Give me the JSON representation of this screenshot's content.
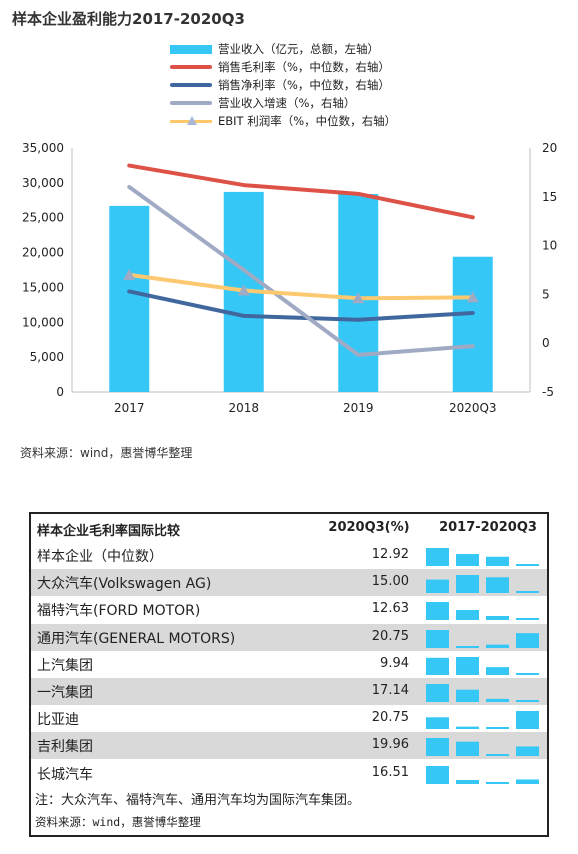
{
  "title": "样本企业盈利能力2017-2020Q3",
  "source1": "资料来源：wind，惠誉博华整理",
  "colors": {
    "revenue": "#35c8f6",
    "gross": "#dd5146",
    "net": "#41689e",
    "growth": "#a0aac4",
    "ebit": "#fcc971",
    "spark": "#35c8f6"
  },
  "chart_data": [
    {
      "type": "bar",
      "title": "样本企业盈利能力2017-2020Q3",
      "categories": [
        "2017",
        "2018",
        "2019",
        "2020Q3"
      ],
      "left_axis": {
        "ticks": [
          "0",
          "5,000",
          "10,000",
          "15,000",
          "20,000",
          "25,000",
          "30,000",
          "35,000"
        ],
        "range": [
          0,
          35000
        ]
      },
      "right_axis": {
        "ticks": [
          "-5",
          "0",
          "5",
          "10",
          "15",
          "20"
        ],
        "range": [
          -5,
          20
        ]
      },
      "series": [
        {
          "name": "营业收入（亿元，总额，左轴）",
          "type": "bar",
          "axis": "left",
          "values": [
            26700,
            28700,
            28400,
            19400
          ]
        },
        {
          "name": "销售毛利率（%，中位数，右轴）",
          "type": "line",
          "axis": "right",
          "values": [
            18.2,
            16.2,
            15.3,
            12.9
          ]
        },
        {
          "name": "销售净利率（%，中位数，右轴）",
          "type": "line",
          "axis": "right",
          "values": [
            5.3,
            2.8,
            2.4,
            3.1
          ]
        },
        {
          "name": "营业收入增速（%，右轴）",
          "type": "line",
          "axis": "right",
          "values": [
            16.0,
            7.5,
            -1.2,
            -0.3
          ]
        },
        {
          "name": "EBIT 利润率（%，中位数，右轴）",
          "type": "line",
          "axis": "right",
          "marker": "triangle",
          "values": [
            7.0,
            5.4,
            4.6,
            4.7
          ]
        }
      ],
      "legend": "top"
    },
    {
      "type": "table",
      "title": "样本企业毛利率国际比较",
      "columns": [
        "样本企业毛利率国际比较",
        "2020Q3(%)",
        "2017-2020Q3"
      ],
      "rows": [
        {
          "name": "样本企业（中位数）",
          "value": "12.92",
          "trend": [
            18.2,
            16.2,
            15.3,
            12.9
          ],
          "shade": false
        },
        {
          "name": "大众汽车(Volkswagen AG)",
          "value": "15.00",
          "trend": [
            17.5,
            18.5,
            18.0,
            15.0
          ],
          "shade": true
        },
        {
          "name": "福特汽车(FORD MOTOR)",
          "value": "12.63",
          "trend": [
            15.0,
            13.8,
            12.9,
            12.6
          ],
          "shade": false
        },
        {
          "name": "通用汽车(GENERAL MOTORS)",
          "value": "20.75",
          "trend": [
            21.2,
            18.9,
            19.1,
            20.75
          ],
          "shade": true
        },
        {
          "name": "上汽集团",
          "value": "9.94",
          "trend": [
            13.7,
            13.9,
            11.4,
            9.94
          ],
          "shade": false
        },
        {
          "name": "一汽集团",
          "value": "17.14",
          "trend": [
            19.4,
            18.6,
            17.3,
            17.14
          ],
          "shade": true
        },
        {
          "name": "比亚迪",
          "value": "20.75",
          "trend": [
            19.0,
            16.4,
            16.3,
            20.75
          ],
          "shade": false
        },
        {
          "name": "吉利集团",
          "value": "19.96",
          "trend": [
            22.5,
            21.4,
            17.7,
            19.96
          ],
          "shade": true
        },
        {
          "name": "长城汽车",
          "value": "16.51",
          "trend": [
            19.2,
            16.4,
            16.0,
            16.51
          ],
          "shade": false
        }
      ]
    }
  ],
  "table": {
    "title": "样本企业毛利率国际比较",
    "col_value": "2020Q3(%)",
    "col_trend": "2017-2020Q3",
    "note": "注：大众汽车、福特汽车、通用汽车均为国际汽车集团。",
    "source": "资料来源：wind，惠誉博华整理"
  }
}
